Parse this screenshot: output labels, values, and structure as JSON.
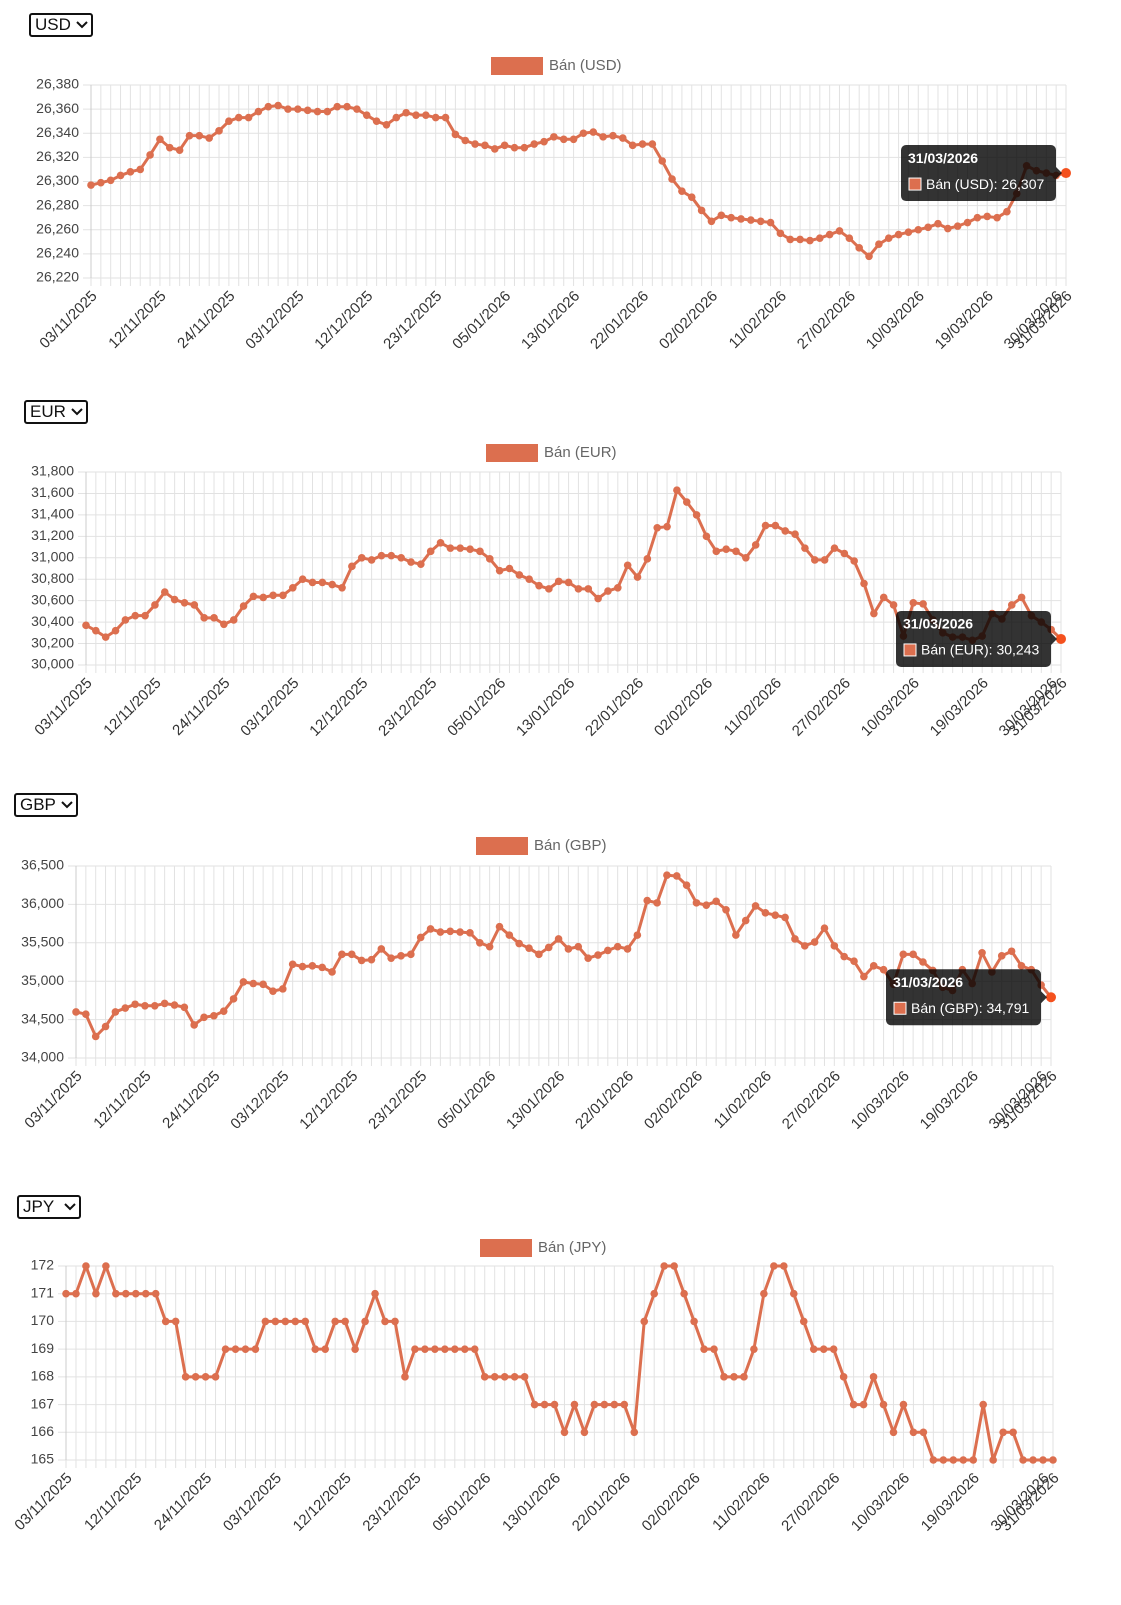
{
  "chart_data": [
    {
      "type": "line",
      "selector": "USD",
      "categories": [
        "03/11/2025",
        null,
        null,
        null,
        null,
        null,
        null,
        "12/11/2025",
        null,
        null,
        null,
        null,
        null,
        null,
        "24/11/2025",
        null,
        null,
        null,
        null,
        null,
        null,
        "03/12/2025",
        null,
        null,
        null,
        null,
        null,
        null,
        "12/12/2025",
        null,
        null,
        null,
        null,
        null,
        null,
        "23/12/2025",
        null,
        null,
        null,
        null,
        null,
        null,
        "05/01/2026",
        null,
        null,
        null,
        null,
        null,
        null,
        "13/01/2026",
        null,
        null,
        null,
        null,
        null,
        null,
        "22/01/2026",
        null,
        null,
        null,
        null,
        null,
        null,
        "02/02/2026",
        null,
        null,
        null,
        null,
        null,
        null,
        "11/02/2026",
        null,
        null,
        null,
        null,
        null,
        null,
        "27/02/2026",
        null,
        null,
        null,
        null,
        null,
        null,
        "10/03/2026",
        null,
        null,
        null,
        null,
        null,
        null,
        "19/03/2026",
        null,
        null,
        null,
        null,
        null,
        null,
        "30/03/2026",
        "31/03/2026"
      ],
      "series": [
        {
          "name": "Bán (USD)",
          "color": "#dc6f4f",
          "values": [
            26297,
            26299,
            26301,
            26305,
            26308,
            26310,
            26322,
            26335,
            26328,
            26326,
            26338,
            26338,
            26336,
            26342,
            26350,
            26353,
            26353,
            26358,
            26362,
            26363,
            26360,
            26360,
            26359,
            26358,
            26358,
            26362,
            26362,
            26360,
            26355,
            26350,
            26347,
            26353,
            26357,
            26355,
            26355,
            26353,
            26353,
            26339,
            26334,
            26331,
            26330,
            26327,
            26330,
            26328,
            26328,
            26331,
            26333,
            26337,
            26335,
            26335,
            26340,
            26341,
            26337,
            26338,
            26336,
            26330,
            26331,
            26331,
            26317,
            26302,
            26292,
            26287,
            26276,
            26267,
            26272,
            26270,
            26269,
            26268,
            26267,
            26266,
            26257,
            26252,
            26252,
            26251,
            26253,
            26256,
            26259,
            26253,
            26245,
            26238,
            26248,
            26253,
            26256,
            26258,
            26260,
            26262,
            26265,
            26261,
            26263,
            26266,
            26270,
            26271,
            26270,
            26275,
            26290,
            26313,
            26309,
            26307,
            26305,
            26307
          ]
        }
      ],
      "ylim": [
        26220,
        26380
      ],
      "yticks": [
        {
          "value": 26220,
          "label": "26,220"
        },
        {
          "value": 26240,
          "label": "26,240"
        },
        {
          "value": 26260,
          "label": "26,260"
        },
        {
          "value": 26280,
          "label": "26,280"
        },
        {
          "value": 26300,
          "label": "26,300"
        },
        {
          "value": 26320,
          "label": "26,320"
        },
        {
          "value": 26340,
          "label": "26,340"
        },
        {
          "value": 26360,
          "label": "26,360"
        },
        {
          "value": 26380,
          "label": "26,380"
        }
      ],
      "grid": true,
      "points": true,
      "highlight_color": "#f4511e",
      "tooltip": {
        "title": "31/03/2026",
        "text": "Bán (USD): 26,307"
      }
    },
    {
      "type": "line",
      "selector": "EUR",
      "categories": [
        "03/11/2025",
        null,
        null,
        null,
        null,
        null,
        null,
        "12/11/2025",
        null,
        null,
        null,
        null,
        null,
        null,
        "24/11/2025",
        null,
        null,
        null,
        null,
        null,
        null,
        "03/12/2025",
        null,
        null,
        null,
        null,
        null,
        null,
        "12/12/2025",
        null,
        null,
        null,
        null,
        null,
        null,
        "23/12/2025",
        null,
        null,
        null,
        null,
        null,
        null,
        "05/01/2026",
        null,
        null,
        null,
        null,
        null,
        null,
        "13/01/2026",
        null,
        null,
        null,
        null,
        null,
        null,
        "22/01/2026",
        null,
        null,
        null,
        null,
        null,
        null,
        "02/02/2026",
        null,
        null,
        null,
        null,
        null,
        null,
        "11/02/2026",
        null,
        null,
        null,
        null,
        null,
        null,
        "27/02/2026",
        null,
        null,
        null,
        null,
        null,
        null,
        "10/03/2026",
        null,
        null,
        null,
        null,
        null,
        null,
        "19/03/2026",
        null,
        null,
        null,
        null,
        null,
        null,
        "30/03/2026",
        "31/03/2026"
      ],
      "series": [
        {
          "name": "Bán (EUR)",
          "color": "#dc6f4f",
          "values": [
            30370,
            30320,
            30260,
            30320,
            30420,
            30460,
            30460,
            30560,
            30680,
            30610,
            30580,
            30560,
            30440,
            30440,
            30380,
            30420,
            30550,
            30640,
            30630,
            30650,
            30650,
            30720,
            30800,
            30770,
            30770,
            30750,
            30720,
            30920,
            31000,
            30980,
            31020,
            31020,
            31000,
            30960,
            30940,
            31060,
            31140,
            31090,
            31090,
            31080,
            31060,
            30990,
            30880,
            30900,
            30840,
            30800,
            30740,
            30710,
            30780,
            30770,
            30710,
            30710,
            30620,
            30690,
            30720,
            30930,
            30820,
            30990,
            31280,
            31290,
            31630,
            31520,
            31400,
            31200,
            31060,
            31080,
            31060,
            31000,
            31120,
            31300,
            31300,
            31250,
            31220,
            31090,
            30980,
            30980,
            31090,
            31040,
            30970,
            30760,
            30480,
            30630,
            30560,
            30270,
            30580,
            30570,
            30420,
            30300,
            30260,
            30260,
            30230,
            30270,
            30480,
            30430,
            30560,
            30630,
            30460,
            30400,
            30330,
            30243
          ]
        }
      ],
      "ylim": [
        30000,
        31800
      ],
      "yticks": [
        {
          "value": 30000,
          "label": "30,000"
        },
        {
          "value": 30200,
          "label": "30,200"
        },
        {
          "value": 30400,
          "label": "30,400"
        },
        {
          "value": 30600,
          "label": "30,600"
        },
        {
          "value": 30800,
          "label": "30,800"
        },
        {
          "value": 31000,
          "label": "31,000"
        },
        {
          "value": 31200,
          "label": "31,200"
        },
        {
          "value": 31400,
          "label": "31,400"
        },
        {
          "value": 31600,
          "label": "31,600"
        },
        {
          "value": 31800,
          "label": "31,800"
        }
      ],
      "grid": true,
      "points": true,
      "highlight_color": "#f4511e",
      "tooltip": {
        "title": "31/03/2026",
        "text": "Bán (EUR): 30,243"
      }
    },
    {
      "type": "line",
      "selector": "GBP",
      "categories": [
        "03/11/2025",
        null,
        null,
        null,
        null,
        null,
        null,
        "12/11/2025",
        null,
        null,
        null,
        null,
        null,
        null,
        "24/11/2025",
        null,
        null,
        null,
        null,
        null,
        null,
        "03/12/2025",
        null,
        null,
        null,
        null,
        null,
        null,
        "12/12/2025",
        null,
        null,
        null,
        null,
        null,
        null,
        "23/12/2025",
        null,
        null,
        null,
        null,
        null,
        null,
        "05/01/2026",
        null,
        null,
        null,
        null,
        null,
        null,
        "13/01/2026",
        null,
        null,
        null,
        null,
        null,
        null,
        "22/01/2026",
        null,
        null,
        null,
        null,
        null,
        null,
        "02/02/2026",
        null,
        null,
        null,
        null,
        null,
        null,
        "11/02/2026",
        null,
        null,
        null,
        null,
        null,
        null,
        "27/02/2026",
        null,
        null,
        null,
        null,
        null,
        null,
        "10/03/2026",
        null,
        null,
        null,
        null,
        null,
        null,
        "19/03/2026",
        null,
        null,
        null,
        null,
        null,
        null,
        "30/03/2026",
        "31/03/2026"
      ],
      "series": [
        {
          "name": "Bán (GBP)",
          "color": "#dc6f4f",
          "values": [
            34600,
            34570,
            34280,
            34410,
            34600,
            34650,
            34700,
            34680,
            34680,
            34710,
            34690,
            34660,
            34430,
            34530,
            34550,
            34610,
            34770,
            34990,
            34970,
            34960,
            34870,
            34900,
            35220,
            35190,
            35200,
            35180,
            35120,
            35350,
            35350,
            35270,
            35280,
            35420,
            35300,
            35330,
            35350,
            35570,
            35680,
            35640,
            35650,
            35640,
            35630,
            35500,
            35450,
            35710,
            35600,
            35490,
            35430,
            35350,
            35440,
            35550,
            35420,
            35450,
            35300,
            35340,
            35400,
            35450,
            35420,
            35600,
            36050,
            36020,
            36380,
            36370,
            36250,
            36020,
            35990,
            36040,
            35930,
            35600,
            35790,
            35980,
            35890,
            35860,
            35830,
            35550,
            35460,
            35510,
            35690,
            35460,
            35320,
            35260,
            35060,
            35200,
            35150,
            34960,
            35350,
            35350,
            35250,
            35140,
            34920,
            34880,
            35150,
            34970,
            35370,
            35120,
            35330,
            35390,
            35200,
            35150,
            34950,
            34791
          ]
        }
      ],
      "ylim": [
        34000,
        36500
      ],
      "yticks": [
        {
          "value": 34000,
          "label": "34,000"
        },
        {
          "value": 34500,
          "label": "34,500"
        },
        {
          "value": 35000,
          "label": "35,000"
        },
        {
          "value": 35500,
          "label": "35,500"
        },
        {
          "value": 36000,
          "label": "36,000"
        },
        {
          "value": 36500,
          "label": "36,500"
        }
      ],
      "grid": true,
      "points": true,
      "highlight_color": "#f4511e",
      "tooltip": {
        "title": "31/03/2026",
        "text": "Bán (GBP): 34,791"
      }
    },
    {
      "type": "line",
      "selector": "JPY",
      "categories": [
        "03/11/2025",
        null,
        null,
        null,
        null,
        null,
        null,
        "12/11/2025",
        null,
        null,
        null,
        null,
        null,
        null,
        "24/11/2025",
        null,
        null,
        null,
        null,
        null,
        null,
        "03/12/2025",
        null,
        null,
        null,
        null,
        null,
        null,
        "12/12/2025",
        null,
        null,
        null,
        null,
        null,
        null,
        "23/12/2025",
        null,
        null,
        null,
        null,
        null,
        null,
        "05/01/2026",
        null,
        null,
        null,
        null,
        null,
        null,
        "13/01/2026",
        null,
        null,
        null,
        null,
        null,
        null,
        "22/01/2026",
        null,
        null,
        null,
        null,
        null,
        null,
        "02/02/2026",
        null,
        null,
        null,
        null,
        null,
        null,
        "11/02/2026",
        null,
        null,
        null,
        null,
        null,
        null,
        "27/02/2026",
        null,
        null,
        null,
        null,
        null,
        null,
        "10/03/2026",
        null,
        null,
        null,
        null,
        null,
        null,
        "19/03/2026",
        null,
        null,
        null,
        null,
        null,
        null,
        "30/03/2026",
        "31/03/2026"
      ],
      "series": [
        {
          "name": "Bán (JPY)",
          "color": "#dc6f4f",
          "values": [
            171,
            171,
            172,
            171,
            172,
            171,
            171,
            171,
            171,
            171,
            170,
            170,
            168,
            168,
            168,
            168,
            169,
            169,
            169,
            169,
            170,
            170,
            170,
            170,
            170,
            169,
            169,
            170,
            170,
            169,
            170,
            171,
            170,
            170,
            168,
            169,
            169,
            169,
            169,
            169,
            169,
            169,
            168,
            168,
            168,
            168,
            168,
            167,
            167,
            167,
            166,
            167,
            166,
            167,
            167,
            167,
            167,
            166,
            170,
            171,
            172,
            172,
            171,
            170,
            169,
            169,
            168,
            168,
            168,
            169,
            171,
            172,
            172,
            171,
            170,
            169,
            169,
            169,
            168,
            167,
            167,
            168,
            167,
            166,
            167,
            166,
            166,
            165,
            165,
            165,
            165,
            165,
            167,
            165,
            166,
            166,
            165,
            165,
            165,
            165
          ]
        }
      ],
      "ylim": [
        165,
        172
      ],
      "yticks": [
        165,
        166,
        167,
        168,
        169,
        170,
        171,
        172
      ],
      "grid": true,
      "points": true
    }
  ]
}
